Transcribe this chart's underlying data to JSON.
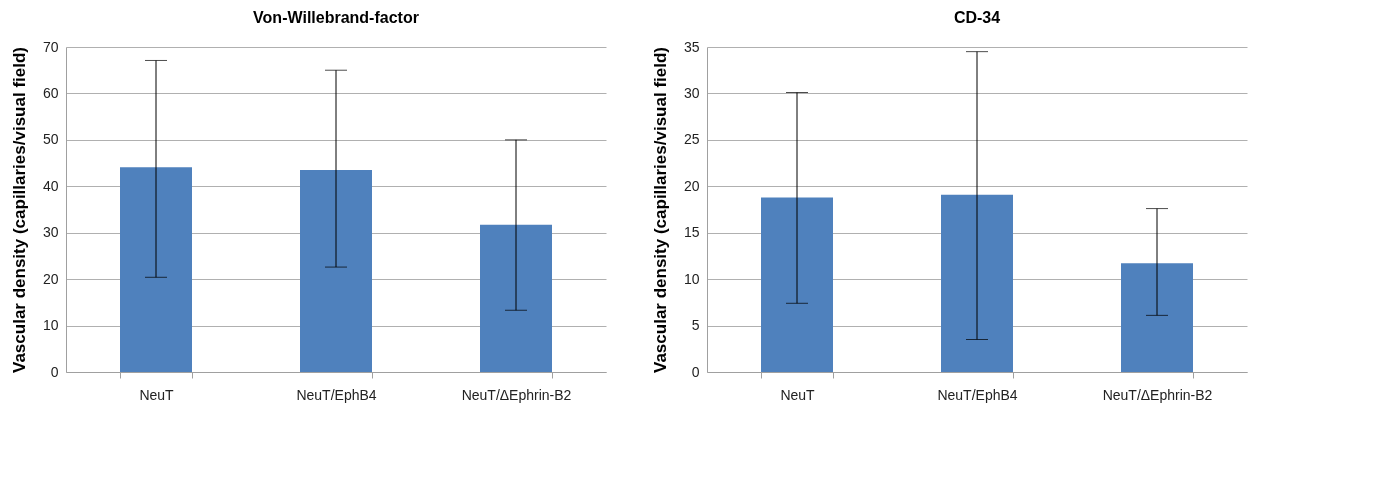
{
  "chart_data": [
    {
      "type": "bar",
      "title": "Von-Willebrand-factor",
      "ylabel": "Vascular density (capillaries/visual field)",
      "categories": [
        "NeuT",
        "NeuT/EphB4",
        "NeuT/ΔEphrin-B2"
      ],
      "values": [
        44.1,
        43.5,
        31.7
      ],
      "color": "#4f81bd",
      "errors": [
        [
          20.4,
          67.1
        ],
        [
          22.6,
          65.0
        ],
        [
          13.3,
          50.0
        ]
      ],
      "ylim": [
        0,
        70
      ],
      "yticks": [
        0,
        10,
        20,
        30,
        40,
        50,
        60,
        70
      ],
      "grid": "y"
    },
    {
      "type": "bar",
      "title": "CD-34",
      "ylabel": "Vascular density (capillaries/visual field)",
      "categories": [
        "NeuT",
        "NeuT/EphB4",
        "NeuT/ΔEphrin-B2"
      ],
      "values": [
        18.8,
        19.1,
        11.7
      ],
      "color": "#4f81bd",
      "errors": [
        [
          7.4,
          30.1
        ],
        [
          3.5,
          34.5
        ],
        [
          6.1,
          17.6
        ]
      ],
      "ylim": [
        0,
        35
      ],
      "yticks": [
        0,
        5,
        10,
        15,
        20,
        25,
        30,
        35
      ],
      "grid": "y"
    }
  ]
}
